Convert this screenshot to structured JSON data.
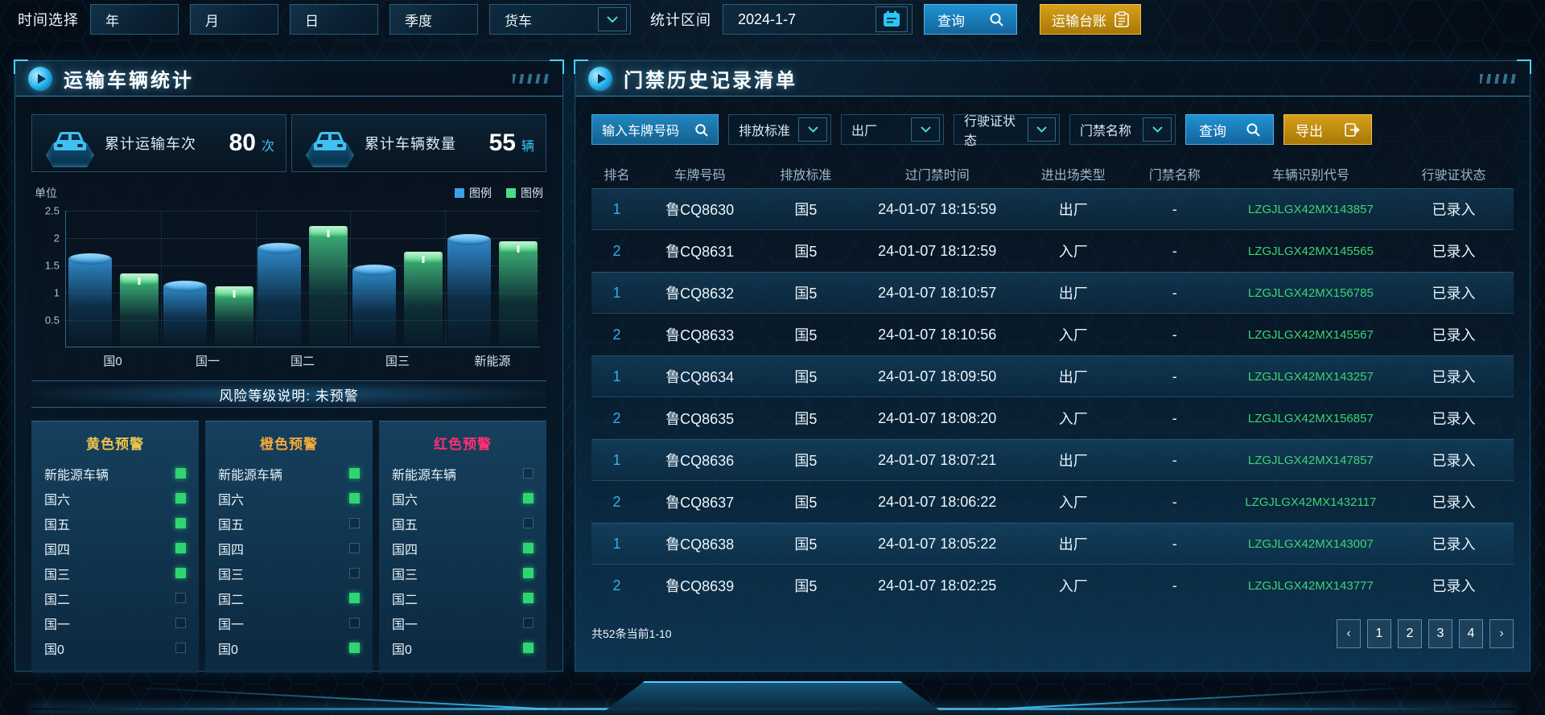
{
  "topbar": {
    "time_label": "时间选择",
    "period_buttons": [
      "年",
      "月",
      "日",
      "季度"
    ],
    "vehicle_select_value": "货车",
    "range_label": "统计区间",
    "date_value": "2024-1-7",
    "query_label": "查询",
    "ledger_label": "运输台账"
  },
  "left_panel": {
    "title": "运输车辆统计",
    "stats": [
      {
        "label": "累计运输车次",
        "value": "80",
        "unit": "次"
      },
      {
        "label": "累计车辆数量",
        "value": "55",
        "unit": "辆"
      }
    ],
    "risk_note": "风险等级说明: 未预警",
    "warnings": [
      {
        "title": "黄色预警",
        "color": "#e8c34d",
        "items": [
          {
            "label": "新能源车辆",
            "checked": true
          },
          {
            "label": "国六",
            "checked": true
          },
          {
            "label": "国五",
            "checked": true
          },
          {
            "label": "国四",
            "checked": true
          },
          {
            "label": "国三",
            "checked": true
          },
          {
            "label": "国二",
            "checked": false
          },
          {
            "label": "国一",
            "checked": false
          },
          {
            "label": "国0",
            "checked": false
          }
        ]
      },
      {
        "title": "橙色预警",
        "color": "#f2a93b",
        "items": [
          {
            "label": "新能源车辆",
            "checked": true
          },
          {
            "label": "国六",
            "checked": true
          },
          {
            "label": "国五",
            "checked": false
          },
          {
            "label": "国四",
            "checked": false
          },
          {
            "label": "国三",
            "checked": false
          },
          {
            "label": "国二",
            "checked": true
          },
          {
            "label": "国一",
            "checked": false
          },
          {
            "label": "国0",
            "checked": true
          }
        ]
      },
      {
        "title": "红色预警",
        "color": "#ff2e74",
        "items": [
          {
            "label": "新能源车辆",
            "checked": false
          },
          {
            "label": "国六",
            "checked": true
          },
          {
            "label": "国五",
            "checked": false
          },
          {
            "label": "国四",
            "checked": true
          },
          {
            "label": "国三",
            "checked": true
          },
          {
            "label": "国二",
            "checked": true
          },
          {
            "label": "国一",
            "checked": false
          },
          {
            "label": "国0",
            "checked": true
          }
        ]
      }
    ]
  },
  "chart_data": {
    "type": "bar",
    "categories": [
      "国0",
      "国一",
      "国二",
      "国三",
      "新能源"
    ],
    "series": [
      {
        "name": "图例",
        "color": "#3aa0e8",
        "values": [
          1.6,
          1.1,
          1.8,
          1.4,
          1.95
        ]
      },
      {
        "name": "图例",
        "color": "#4ed98c",
        "values": [
          1.2,
          0.97,
          2.07,
          1.6,
          1.8
        ]
      }
    ],
    "title": "",
    "xlabel": "",
    "ylabel": "单位",
    "yticks": [
      0.5,
      1,
      1.5,
      2,
      2.5
    ],
    "ylim": [
      0,
      2.5
    ],
    "legend_position": "top-right",
    "grid": "dotted"
  },
  "right_panel": {
    "title": "门禁历史记录清单",
    "filters": {
      "plate_placeholder": "输入车牌号码",
      "emission_value": "排放标准",
      "direction_value": "出厂",
      "license_status_value": "行驶证状态",
      "gate_name_value": "门禁名称",
      "query_label": "查询",
      "export_label": "导出"
    },
    "table": {
      "headers": [
        "排名",
        "车牌号码",
        "排放标准",
        "过门禁时间",
        "进出场类型",
        "门禁名称",
        "车辆识别代号",
        "行驶证状态"
      ],
      "rows": [
        [
          "1",
          "鲁CQ8630",
          "国5",
          "24-01-07 18:15:59",
          "出厂",
          "-",
          "LZGJLGX42MX143857",
          "已录入"
        ],
        [
          "2",
          "鲁CQ8631",
          "国5",
          "24-01-07 18:12:59",
          "入厂",
          "-",
          "LZGJLGX42MX145565",
          "已录入"
        ],
        [
          "1",
          "鲁CQ8632",
          "国5",
          "24-01-07 18:10:57",
          "出厂",
          "-",
          "LZGJLGX42MX156785",
          "已录入"
        ],
        [
          "2",
          "鲁CQ8633",
          "国5",
          "24-01-07 18:10:56",
          "入厂",
          "-",
          "LZGJLGX42MX145567",
          "已录入"
        ],
        [
          "1",
          "鲁CQ8634",
          "国5",
          "24-01-07 18:09:50",
          "出厂",
          "-",
          "LZGJLGX42MX143257",
          "已录入"
        ],
        [
          "2",
          "鲁CQ8635",
          "国5",
          "24-01-07 18:08:20",
          "入厂",
          "-",
          "LZGJLGX42MX156857",
          "已录入"
        ],
        [
          "1",
          "鲁CQ8636",
          "国5",
          "24-01-07 18:07:21",
          "出厂",
          "-",
          "LZGJLGX42MX147857",
          "已录入"
        ],
        [
          "2",
          "鲁CQ8637",
          "国5",
          "24-01-07 18:06:22",
          "入厂",
          "-",
          "LZGJLGX42MX1432117",
          "已录入"
        ],
        [
          "1",
          "鲁CQ8638",
          "国5",
          "24-01-07 18:05:22",
          "出厂",
          "-",
          "LZGJLGX42MX143007",
          "已录入"
        ],
        [
          "2",
          "鲁CQ8639",
          "国5",
          "24-01-07 18:02:25",
          "入厂",
          "-",
          "LZGJLGX42MX143777",
          "已录入"
        ]
      ]
    },
    "footer": {
      "summary": "共52条当前1-10",
      "prev": "‹",
      "pages": [
        "1",
        "2",
        "3",
        "4"
      ],
      "next": "›"
    }
  },
  "icons": {
    "search": "magnifier",
    "calendar": "calendar",
    "ledger": "clipboard",
    "export": "box-arrow-right",
    "chevron_down": "⌄",
    "play": "▶"
  }
}
